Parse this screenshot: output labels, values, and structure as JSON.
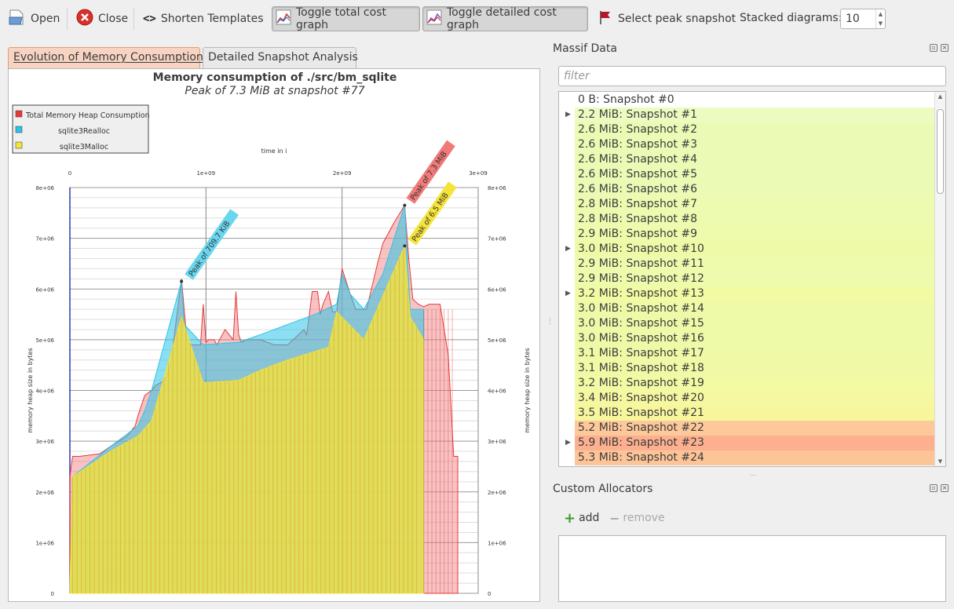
{
  "toolbar": {
    "open_label": "Open",
    "close_label": "Close",
    "shorten_label": "Shorten Templates",
    "shorten_glyph": "<>",
    "toggle_total_label": "Toggle total cost graph",
    "toggle_detailed_label": "Toggle detailed cost graph",
    "peak_label": "Select peak snapshot",
    "stacked_label": "Stacked diagrams:",
    "stacked_value": "10"
  },
  "tabs": [
    {
      "label": "Evolution of Memory Consumption",
      "active": true
    },
    {
      "label": "Detailed Snapshot Analysis",
      "active": false
    }
  ],
  "chart": {
    "title": "Memory consumption of ./src/bm_sqlite",
    "subtitle": "Peak of 7.3 MiB at snapshot #77",
    "legend": [
      "Total Memory Heap Consumption",
      "sqlite3Realloc",
      "sqlite3Malloc"
    ],
    "xlabel": "time in i",
    "ylabel": "memory heap size in bytes",
    "yticks": [
      "0",
      "1e+06",
      "2e+06",
      "3e+06",
      "4e+06",
      "5e+06",
      "6e+06",
      "7e+06",
      "8e+06"
    ],
    "xticks": [
      "0",
      "1e+09",
      "2e+09",
      "3e+09"
    ],
    "peak_labels": [
      "Peak of 7.3 MiB",
      "Peak of 6.5 MiB",
      "Peak of 709.7 KiB"
    ]
  },
  "chart_data": {
    "type": "area",
    "title": "Memory consumption of ./src/bm_sqlite",
    "subtitle": "Peak of 7.3 MiB at snapshot #77",
    "xlabel": "time in i",
    "ylabel": "memory heap size in bytes",
    "xlim": [
      0,
      3000000000
    ],
    "ylim": [
      0,
      8000000
    ],
    "series": [
      {
        "name": "Total Memory Heap Consumption",
        "color": "#e8393a",
        "x": [
          0,
          0.02,
          0.07,
          0.22,
          0.3,
          0.42,
          0.48,
          0.5,
          0.55,
          0.6,
          0.63,
          0.7,
          0.74,
          0.82,
          0.86,
          0.88,
          0.96,
          0.98,
          1.0,
          1.02,
          1.06,
          1.08,
          1.14,
          1.2,
          1.22,
          1.24,
          1.26,
          1.3,
          1.4,
          1.5,
          1.6,
          1.72,
          1.74,
          1.76,
          1.78,
          1.82,
          1.84,
          1.86,
          1.9,
          1.93,
          1.96,
          2.0,
          2.06,
          2.1,
          2.18,
          2.26,
          2.3,
          2.38,
          2.46,
          2.49,
          2.52,
          2.56,
          2.6,
          2.64,
          2.72,
          2.78,
          2.82,
          2.85
        ],
        "y": [
          2.3,
          2.7,
          2.7,
          2.75,
          2.9,
          3.1,
          3.3,
          3.5,
          3.9,
          4.0,
          4.1,
          4.2,
          4.5,
          6.2,
          5.0,
          4.9,
          4.9,
          5.7,
          4.95,
          5.0,
          5.0,
          4.9,
          5.2,
          5.0,
          5.95,
          5.1,
          4.95,
          5.0,
          5.0,
          4.9,
          4.9,
          5.2,
          5.1,
          5.5,
          5.95,
          5.95,
          5.5,
          5.7,
          5.95,
          5.55,
          5.55,
          6.4,
          5.9,
          5.6,
          5.6,
          6.5,
          6.9,
          7.3,
          7.65,
          6.6,
          5.8,
          5.7,
          5.65,
          5.7,
          5.7,
          4.7,
          2.7,
          2.7
        ]
      },
      {
        "name": "sqlite3Realloc",
        "color": "#2ec4e8",
        "x": [
          0,
          0.02,
          0.3,
          0.5,
          0.55,
          0.6,
          0.82,
          0.84,
          0.98,
          1.24,
          1.4,
          1.6,
          1.8,
          1.96,
          2.0,
          2.06,
          2.16,
          2.3,
          2.46,
          2.5,
          2.6
        ],
        "y": [
          0.1,
          2.3,
          2.9,
          3.3,
          3.6,
          4.0,
          6.15,
          5.3,
          4.9,
          4.95,
          5.1,
          5.3,
          5.5,
          5.7,
          6.3,
          5.9,
          5.6,
          6.3,
          7.65,
          5.6,
          5.6
        ]
      },
      {
        "name": "sqlite3Malloc",
        "color": "#f5e33a",
        "x": [
          0,
          0.02,
          0.3,
          0.5,
          0.6,
          0.82,
          0.98,
          1.24,
          1.4,
          1.6,
          1.9,
          1.96,
          2.16,
          2.46,
          2.5,
          2.6
        ],
        "y": [
          0.1,
          2.3,
          2.8,
          3.1,
          3.4,
          5.45,
          4.15,
          4.2,
          4.4,
          4.6,
          4.85,
          5.55,
          5.0,
          6.85,
          5.45,
          5.0
        ]
      }
    ],
    "x_unit_note_hidden": "",
    "grid": true,
    "legend_position": "top-left"
  },
  "massif": {
    "title": "Massif Data",
    "filter_placeholder": "filter",
    "rows": [
      {
        "text": "0 B: Snapshot #0",
        "expandable": false,
        "color": "#ffffff"
      },
      {
        "text": "2.2 MiB: Snapshot #1",
        "expandable": true,
        "color": "#ecfcc0"
      },
      {
        "text": "2.6 MiB: Snapshot #2",
        "expandable": false,
        "color": "#ebfbb5"
      },
      {
        "text": "2.6 MiB: Snapshot #3",
        "expandable": false,
        "color": "#ebfbb5"
      },
      {
        "text": "2.6 MiB: Snapshot #4",
        "expandable": false,
        "color": "#ebfbb5"
      },
      {
        "text": "2.6 MiB: Snapshot #5",
        "expandable": false,
        "color": "#ebfbb5"
      },
      {
        "text": "2.6 MiB: Snapshot #6",
        "expandable": false,
        "color": "#ebfbb5"
      },
      {
        "text": "2.8 MiB: Snapshot #7",
        "expandable": false,
        "color": "#ecfbb0"
      },
      {
        "text": "2.8 MiB: Snapshot #8",
        "expandable": false,
        "color": "#ecfbb0"
      },
      {
        "text": "2.9 MiB: Snapshot #9",
        "expandable": false,
        "color": "#eefbac"
      },
      {
        "text": "3.0 MiB: Snapshot #10",
        "expandable": true,
        "color": "#effaa8"
      },
      {
        "text": "2.9 MiB: Snapshot #11",
        "expandable": false,
        "color": "#eefbac"
      },
      {
        "text": "2.9 MiB: Snapshot #12",
        "expandable": false,
        "color": "#eefbac"
      },
      {
        "text": "3.2 MiB: Snapshot #13",
        "expandable": true,
        "color": "#f2faa4"
      },
      {
        "text": "3.0 MiB: Snapshot #14",
        "expandable": false,
        "color": "#effaa8"
      },
      {
        "text": "3.0 MiB: Snapshot #15",
        "expandable": false,
        "color": "#effaa8"
      },
      {
        "text": "3.0 MiB: Snapshot #16",
        "expandable": false,
        "color": "#effaa8"
      },
      {
        "text": "3.1 MiB: Snapshot #17",
        "expandable": false,
        "color": "#f0faa6"
      },
      {
        "text": "3.1 MiB: Snapshot #18",
        "expandable": false,
        "color": "#f0faa6"
      },
      {
        "text": "3.2 MiB: Snapshot #19",
        "expandable": false,
        "color": "#f2faa4"
      },
      {
        "text": "3.4 MiB: Snapshot #20",
        "expandable": false,
        "color": "#f5f8a0"
      },
      {
        "text": "3.5 MiB: Snapshot #21",
        "expandable": false,
        "color": "#f7f69c"
      },
      {
        "text": "5.2 MiB: Snapshot #22",
        "expandable": false,
        "color": "#fdc89a"
      },
      {
        "text": "5.9 MiB: Snapshot #23",
        "expandable": true,
        "color": "#fcb090"
      },
      {
        "text": "5.3 MiB: Snapshot #24",
        "expandable": false,
        "color": "#fdc498"
      }
    ]
  },
  "allocators": {
    "title": "Custom Allocators",
    "add_label": "add",
    "remove_label": "remove"
  }
}
